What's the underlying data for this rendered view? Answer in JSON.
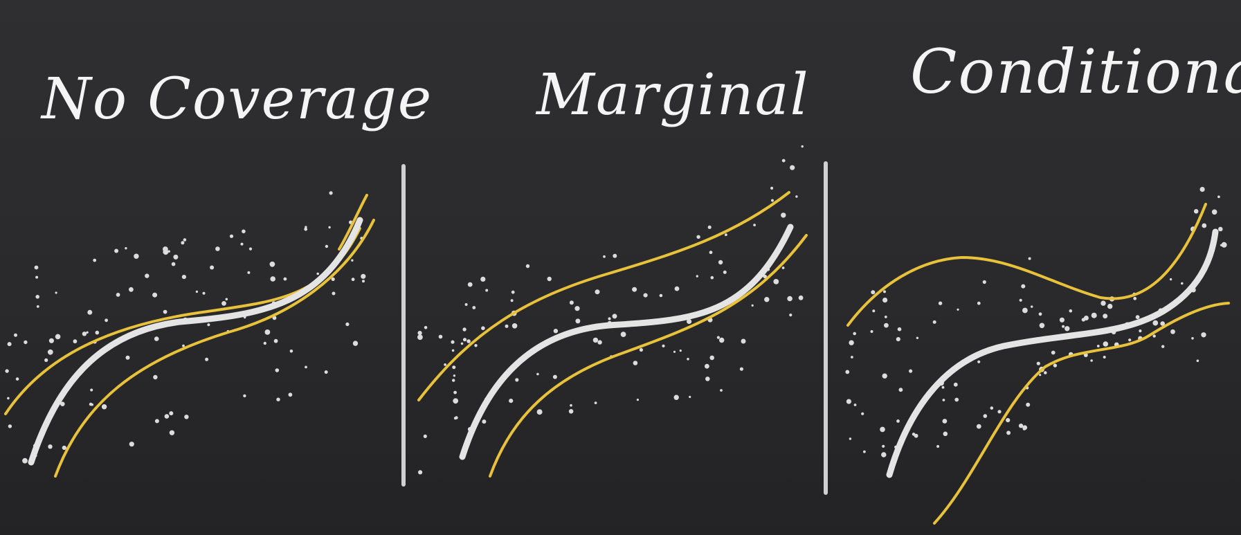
{
  "titles": {
    "no_coverage": "No Coverage",
    "marginal": "Marginal",
    "conditional": "Conditional"
  },
  "colors": {
    "background": "#2b2b2d",
    "prediction_line": "#e4e4e4",
    "interval_bounds": "#e8c23a",
    "points": "#dcdcdc",
    "divider": "#d0d0d0"
  }
}
